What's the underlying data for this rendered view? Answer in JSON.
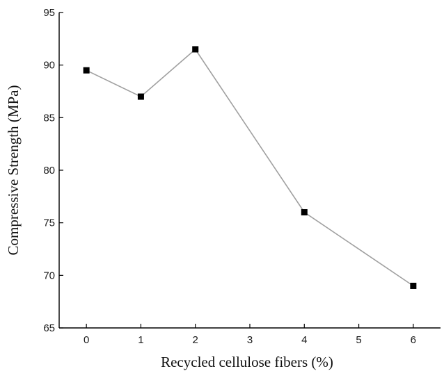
{
  "chart_data": {
    "type": "line",
    "title": "",
    "xlabel": "Recycled cellulose fibers (%)",
    "ylabel": "Compressive Strength (MPa)",
    "xlim": [
      -0.5,
      6.5
    ],
    "ylim": [
      65,
      95
    ],
    "xticks": [
      0,
      1,
      2,
      3,
      4,
      5,
      6
    ],
    "yticks": [
      65,
      70,
      75,
      80,
      85,
      90,
      95
    ],
    "grid": false,
    "legend": "none",
    "series": [
      {
        "x": [
          0,
          1,
          2,
          4,
          6
        ],
        "y": [
          89.5,
          87.0,
          91.5,
          76.0,
          69.0
        ],
        "line_color": "#a0a0a0",
        "marker": "square",
        "marker_color": "#000000"
      }
    ]
  }
}
